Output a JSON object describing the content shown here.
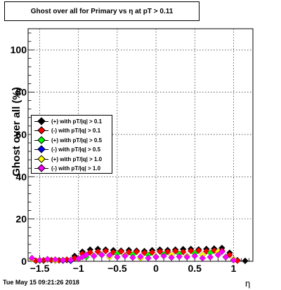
{
  "chart_data": {
    "type": "scatter",
    "title": "Ghost over all for Primary vs   η at pT > 0.11",
    "xlabel": "η",
    "ylabel": "Ghost over all (%)",
    "xlim": [
      -1.65,
      1.25
    ],
    "ylim": [
      0,
      110
    ],
    "x_ticks": [
      -1.5,
      -1,
      -0.5,
      0,
      0.5,
      1
    ],
    "x_tick_labels": [
      "−1.5",
      "−1",
      "−0.5",
      "0",
      "0.5",
      "1"
    ],
    "y_ticks": [
      0,
      20,
      40,
      60,
      80,
      100
    ],
    "y_tick_labels": [
      "0",
      "20",
      "40",
      "60",
      "80",
      "100"
    ],
    "grid": true,
    "legend_position": "left-middle",
    "series": [
      {
        "name": "(+) with pT/|q| > 0.1",
        "color": "#000000",
        "x": [
          -1.55,
          -1.45,
          -1.35,
          -1.25,
          -1.15,
          -1.05,
          -0.95,
          -0.85,
          -0.75,
          -0.65,
          -0.55,
          -0.45,
          -0.35,
          -0.25,
          -0.15,
          -0.05,
          0.05,
          0.15,
          0.25,
          0.35,
          0.45,
          0.55,
          0.65,
          0.75,
          0.85,
          0.95,
          1.05,
          1.15
        ],
        "y": [
          0.2,
          0.3,
          0.5,
          0.5,
          0.6,
          2.5,
          4.5,
          5.5,
          5.8,
          5.5,
          5.2,
          5.0,
          5.3,
          5.0,
          4.8,
          5.2,
          5.5,
          5.3,
          5.5,
          5.7,
          5.8,
          5.6,
          5.8,
          6.0,
          6.3,
          4.0,
          0.5,
          0.2
        ]
      },
      {
        "name": "(-) with pT/|q| > 0.1",
        "color": "#ff0000",
        "x": [
          -1.55,
          -1.45,
          -1.35,
          -1.25,
          -1.15,
          -1.05,
          -0.95,
          -0.85,
          -0.75,
          -0.65,
          -0.55,
          -0.45,
          -0.35,
          -0.25,
          -0.15,
          -0.05,
          0.05,
          0.15,
          0.25,
          0.35,
          0.45,
          0.55,
          0.65,
          0.75,
          0.85,
          0.95,
          1.05
        ],
        "y": [
          0.3,
          0.5,
          0.6,
          0.4,
          0.8,
          1.5,
          3.5,
          4.2,
          4.5,
          4.8,
          4.2,
          4.6,
          4.3,
          4.5,
          4.0,
          4.2,
          4.6,
          4.5,
          4.8,
          4.4,
          4.9,
          5.0,
          4.7,
          5.0,
          5.0,
          3.0,
          0.3
        ]
      },
      {
        "name": "(+) with pT/|q| > 0.5",
        "color": "#00ff00",
        "x": [
          -1.5,
          -1.3,
          -1.1,
          -0.9,
          -0.7,
          -0.5,
          -0.3,
          -0.1,
          0.1,
          0.3,
          0.5,
          0.7,
          0.9
        ],
        "y": [
          0.3,
          0.4,
          0.5,
          2.0,
          3.0,
          3.5,
          3.2,
          3.0,
          3.3,
          3.5,
          3.8,
          4.0,
          2.0
        ]
      },
      {
        "name": "(-) with pT/|q| > 0.5",
        "color": "#0000ff",
        "x": [
          -1.2,
          -1.1
        ],
        "y": [
          0.3,
          0.2
        ]
      },
      {
        "name": "(+) with pT/|q| > 1.0",
        "color": "#ffff00",
        "x": [
          -1.6,
          -1.5,
          -1.4,
          -1.3,
          -1.2,
          -1.0,
          -0.8,
          -0.6,
          -0.4,
          -0.2,
          0.0,
          0.2,
          0.4,
          0.6,
          0.8,
          0.9,
          1.0
        ],
        "y": [
          1.0,
          0.5,
          0.8,
          0.3,
          0.6,
          1.0,
          2.5,
          2.0,
          2.8,
          1.5,
          2.2,
          3.0,
          2.5,
          3.0,
          4.5,
          2.0,
          1.0
        ]
      },
      {
        "name": "(-) with pT/|q| > 1.0",
        "color": "#ff00ff",
        "x": [
          -1.6,
          -1.5,
          -1.4,
          -1.3,
          -1.2,
          -1.1,
          -1.0,
          -0.95,
          -0.9,
          -0.8,
          -0.7,
          -0.6,
          -0.5,
          -0.4,
          -0.3,
          -0.2,
          -0.1,
          0.0,
          0.1,
          0.2,
          0.3,
          0.4,
          0.5,
          0.6,
          0.7,
          0.8,
          0.85,
          0.9,
          1.0
        ],
        "y": [
          1.5,
          0.5,
          1.0,
          0.8,
          0.5,
          0.6,
          1.2,
          2.0,
          3.0,
          2.5,
          3.0,
          2.8,
          2.0,
          2.5,
          1.8,
          2.2,
          1.5,
          2.0,
          2.5,
          1.8,
          2.2,
          2.0,
          2.5,
          1.5,
          2.0,
          3.0,
          4.5,
          2.0,
          0.5
        ]
      }
    ]
  },
  "timestamp": "Tue May 15 09:21:26 2018"
}
